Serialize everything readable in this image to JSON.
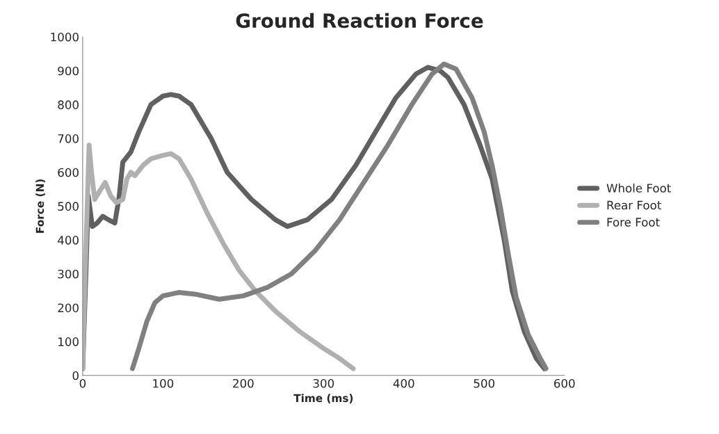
{
  "chart_data": {
    "type": "line",
    "title": "Ground Reaction Force",
    "xlabel": "Time (ms)",
    "ylabel": "Force (N)",
    "xlim": [
      0,
      600
    ],
    "xticks": [
      0,
      100,
      200,
      300,
      400,
      500,
      600
    ],
    "ylim": [
      0,
      1000
    ],
    "yticks": [
      0,
      100,
      200,
      300,
      400,
      500,
      600,
      700,
      800,
      900,
      1000
    ],
    "grid": false,
    "legend": "right",
    "marker": "none",
    "line_style": "solid",
    "series": [
      {
        "name": "Whole Foot",
        "color": "#606060",
        "x": [
          0,
          4,
          7,
          12,
          18,
          25,
          32,
          40,
          45,
          50,
          60,
          70,
          85,
          100,
          110,
          120,
          135,
          160,
          180,
          210,
          240,
          255,
          280,
          310,
          340,
          365,
          390,
          415,
          430,
          445,
          455,
          475,
          495,
          510,
          525,
          535,
          550,
          565,
          575
        ],
        "values": [
          20,
          300,
          530,
          440,
          450,
          470,
          460,
          450,
          520,
          630,
          660,
          720,
          800,
          825,
          830,
          825,
          800,
          700,
          600,
          520,
          460,
          440,
          460,
          520,
          620,
          720,
          820,
          890,
          910,
          900,
          880,
          800,
          680,
          580,
          400,
          250,
          130,
          50,
          20
        ]
      },
      {
        "name": "Rear Foot",
        "color": "#b0b0b0",
        "x": [
          0,
          3,
          8,
          11,
          15,
          20,
          28,
          35,
          42,
          50,
          55,
          60,
          65,
          75,
          85,
          100,
          110,
          120,
          135,
          155,
          175,
          195,
          215,
          240,
          270,
          300,
          320,
          337
        ],
        "values": [
          20,
          300,
          680,
          600,
          520,
          540,
          570,
          530,
          510,
          520,
          580,
          600,
          590,
          620,
          640,
          650,
          655,
          640,
          580,
          480,
          390,
          310,
          250,
          190,
          130,
          80,
          50,
          20
        ]
      },
      {
        "name": "Fore Foot",
        "color": "#808080",
        "x": [
          62,
          70,
          80,
          90,
          100,
          120,
          140,
          170,
          200,
          230,
          260,
          290,
          320,
          350,
          380,
          410,
          435,
          450,
          465,
          485,
          500,
          510,
          520,
          530,
          540,
          555,
          570,
          577
        ],
        "values": [
          20,
          80,
          160,
          215,
          235,
          245,
          240,
          225,
          235,
          260,
          300,
          370,
          460,
          570,
          680,
          800,
          890,
          920,
          905,
          820,
          720,
          620,
          500,
          360,
          230,
          120,
          50,
          20
        ]
      }
    ]
  }
}
